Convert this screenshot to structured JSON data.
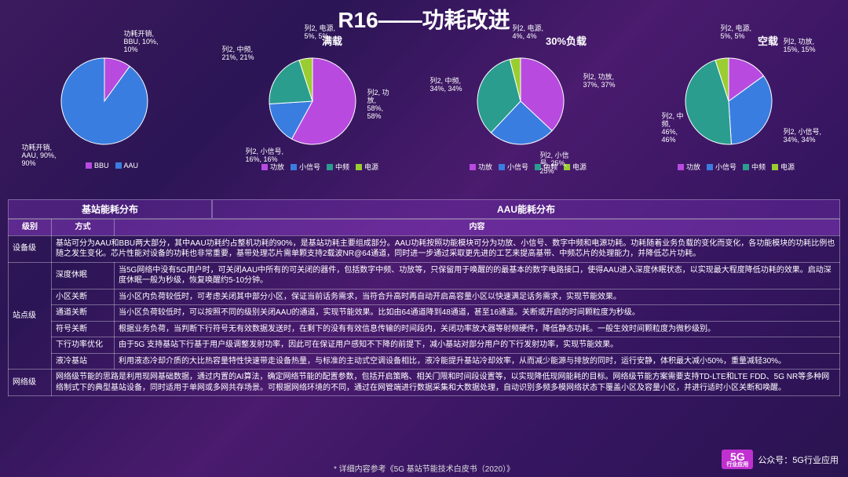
{
  "title": "R16——功耗改进",
  "colors": {
    "bbu": "#b84ae0",
    "aau": "#3a7de0",
    "pa": "#b84ae0",
    "small": "#3a7de0",
    "mid": "#2a9d8f",
    "psu": "#9acd32"
  },
  "charts": [
    {
      "subtitle": "",
      "slices": [
        {
          "name": "BBU",
          "value": 10,
          "color": "#b84ae0",
          "label": "功耗开销,\nBBU, 10%,\n10%",
          "lpos": [
            105,
            -5
          ]
        },
        {
          "name": "AAU",
          "value": 90,
          "color": "#3a7de0",
          "label": "功耗开销,\nAAU, 90%,\n90%",
          "lpos": [
            -25,
            140
          ]
        }
      ],
      "legend": [
        {
          "c": "#b84ae0",
          "t": "BBU"
        },
        {
          "c": "#3a7de0",
          "t": "AAU"
        }
      ]
    },
    {
      "subtitle": "满载",
      "subpos": 135,
      "slices": [
        {
          "name": "功放",
          "value": 58,
          "color": "#b84ae0",
          "label": "列2, 功\n放,\n58%,\n58%",
          "lpos": [
            150,
            70
          ]
        },
        {
          "name": "小信号",
          "value": 16,
          "color": "#3a7de0",
          "label": "列2, 小信号,\n16%, 16%",
          "lpos": [
            -5,
            145
          ]
        },
        {
          "name": "中频",
          "value": 21,
          "color": "#2a9d8f",
          "label": "列2, 中频,\n21%, 21%",
          "lpos": [
            -35,
            15
          ]
        },
        {
          "name": "电源",
          "value": 5,
          "color": "#9acd32",
          "label": "列2, 电源,\n5%, 5%",
          "lpos": [
            70,
            -12
          ]
        }
      ],
      "legend": [
        {
          "c": "#b84ae0",
          "t": "功放"
        },
        {
          "c": "#3a7de0",
          "t": "小信号"
        },
        {
          "c": "#2a9d8f",
          "t": "中频"
        },
        {
          "c": "#9acd32",
          "t": "电源"
        }
      ]
    },
    {
      "subtitle": "30%负载",
      "subpos": 155,
      "slices": [
        {
          "name": "功放",
          "value": 37,
          "color": "#b84ae0",
          "label": "列2, 功放,\n37%, 37%",
          "lpos": [
            160,
            50
          ]
        },
        {
          "name": "小信号",
          "value": 25,
          "color": "#3a7de0",
          "label": "列2, 小信\n号, 25%,\n25%",
          "lpos": [
            105,
            150
          ]
        },
        {
          "name": "中频",
          "value": 34,
          "color": "#2a9d8f",
          "label": "列2, 中频,\n34%, 34%",
          "lpos": [
            -35,
            55
          ]
        },
        {
          "name": "电源",
          "value": 4,
          "color": "#9acd32",
          "label": "列2, 电源,\n4%, 4%",
          "lpos": [
            70,
            -12
          ]
        }
      ],
      "legend": [
        {
          "c": "#b84ae0",
          "t": "功放"
        },
        {
          "c": "#3a7de0",
          "t": "小信号"
        },
        {
          "c": "#2a9d8f",
          "t": "中频"
        },
        {
          "c": "#9acd32",
          "t": "电源"
        }
      ]
    },
    {
      "subtitle": "空载",
      "subpos": 160,
      "slices": [
        {
          "name": "功放",
          "value": 15,
          "color": "#b84ae0",
          "label": "列2, 功放,\n15%, 15%",
          "lpos": [
            150,
            5
          ]
        },
        {
          "name": "小信号",
          "value": 34,
          "color": "#3a7de0",
          "label": "列2, 小信号,\n34%, 34%",
          "lpos": [
            150,
            120
          ]
        },
        {
          "name": "中频",
          "value": 46,
          "color": "#2a9d8f",
          "label": "列2, 中\n频,\n46%,\n46%",
          "lpos": [
            -5,
            100
          ]
        },
        {
          "name": "电源",
          "value": 5,
          "color": "#9acd32",
          "label": "列2, 电源,\n5%, 5%",
          "lpos": [
            70,
            -12
          ]
        }
      ],
      "legend": [
        {
          "c": "#b84ae0",
          "t": "功放"
        },
        {
          "c": "#3a7de0",
          "t": "小信号"
        },
        {
          "c": "#2a9d8f",
          "t": "中频"
        },
        {
          "c": "#9acd32",
          "t": "电源"
        }
      ]
    }
  ],
  "section_headers": {
    "left": "基站能耗分布",
    "right": "AAU能耗分布"
  },
  "table": {
    "headers": [
      "级别",
      "方式",
      "内容"
    ],
    "rows": [
      {
        "level": "设备级",
        "way": "",
        "content": "基站可分为AAU和BBU两大部分，其中AAU功耗约占整机功耗的90%，是基站功耗主要组成部分。AAU功耗按照功能模块可分为功放、小信号、数字中频和电源功耗。功耗随着业务负载的变化而变化，各功能模块的功耗比例也随之发生变化。芯片性能对设备的功耗也非常重要，基带处理芯片需单颗支持2载波NR@64通道，同时进一步通过采取更先进的工艺来提高基带、中频芯片的处理能力，并降低芯片功耗。",
        "rowspan": 1
      },
      {
        "level": "站点级",
        "levelRowspan": 6,
        "way": "深度休眠",
        "content": "当5G网络中没有5G用户时，可关闭AAU中所有的可关闭的器件，包括数字中频、功放等，只保留用于唤醒的的最基本的数字电路接口，使得AAU进入深度休眠状态，以实现最大程度降低功耗的效果。启动深度休眠一般为秒级，恢复唤醒约5-10分钟。"
      },
      {
        "way": "小区关断",
        "content": "当小区内负荷较低时，可考虑关闭其中部分小区，保证当前话务需求，当符合升高时再自动开启高容量小区以快速满足话务需求，实现节能效果。"
      },
      {
        "way": "通道关断",
        "content": "当小区负荷较低时，可以按照不同的级别关闭AAU的通道，实现节能效果。比如由64通道降到48通道，甚至16通道。关断或开启的时间颗粒度为秒级。"
      },
      {
        "way": "符号关断",
        "content": "根据业务负荷，当判断下行符号无有效数据发送时，在剩下的没有有效信息传输的时间段内，关闭功率放大器等射频硬件，降低静态功耗。一般生效时间颗粒度为微秒级别。"
      },
      {
        "way": "下行功率优化",
        "content": "由于5G 支持基站下行基于用户级调整发射功率，因此可在保证用户感知不下降的前提下，减小基站对部分用户的下行发射功率，实现节能效果。"
      },
      {
        "way": "液冷基站",
        "content": "利用液态冷却介质的大比热容量特性快速带走设备热量，与标准的主动式空调设备相比，液冷能提升基站冷却效率，从而减少能源与排放的同时，运行安静，体积最大减小50%，重量减轻30%。"
      },
      {
        "level": "网络级",
        "way": "",
        "content": "网络级节能的思路是利用现网基础数据，通过内置的AI算法，确定网络节能的配置参数，包括开启策略、相关门限和时间段设置等，以实现降低现网能耗的目标。网络级节能方案需要支持TD-LTE和LTE FDD、5G NR等多种网络制式下的典型基站设备，同时适用于单网或多网共存场景。可根据网络环境的不同，通过在网管端进行数据采集和大数据处理，自动识别多频多模网络状态下覆盖小区及容量小区，并进行适时小区关断和唤醒。"
      }
    ]
  },
  "footer": "* 详细内容参考《5G 基站节能技术白皮书（2020）》",
  "brand": {
    "logo": "5G",
    "logosub": "行业应用",
    "text": "公众号：5G行业应用"
  }
}
